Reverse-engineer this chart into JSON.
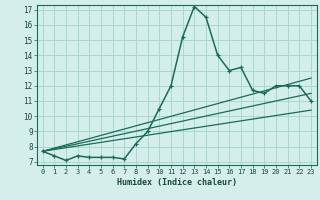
{
  "xlabel": "Humidex (Indice chaleur)",
  "bg_color": "#d4eeea",
  "grid_color": "#a8d8cc",
  "line_color": "#1a6b5a",
  "tick_color": "#1a4a3a",
  "xlim": [
    -0.5,
    23.5
  ],
  "ylim": [
    6.8,
    17.3
  ],
  "xticks": [
    0,
    1,
    2,
    3,
    4,
    5,
    6,
    7,
    8,
    9,
    10,
    11,
    12,
    13,
    14,
    15,
    16,
    17,
    18,
    19,
    20,
    21,
    22,
    23
  ],
  "yticks": [
    7,
    8,
    9,
    10,
    11,
    12,
    13,
    14,
    15,
    16,
    17
  ],
  "line1_x": [
    0,
    1,
    2,
    3,
    4,
    5,
    6,
    7,
    8,
    9,
    10,
    11,
    12,
    13,
    14,
    15,
    16,
    17,
    18,
    19,
    20,
    21,
    22,
    23
  ],
  "line1_y": [
    7.7,
    7.4,
    7.1,
    7.4,
    7.3,
    7.3,
    7.3,
    7.2,
    8.2,
    9.0,
    10.5,
    12.0,
    15.2,
    17.2,
    16.5,
    14.0,
    13.0,
    13.2,
    11.7,
    11.5,
    12.0,
    12.0,
    12.0,
    11.0
  ],
  "line2_x": [
    0,
    23
  ],
  "line2_y": [
    7.7,
    10.4
  ],
  "line3_x": [
    0,
    23
  ],
  "line3_y": [
    7.7,
    11.5
  ],
  "line4_x": [
    0,
    23
  ],
  "line4_y": [
    7.7,
    12.5
  ]
}
